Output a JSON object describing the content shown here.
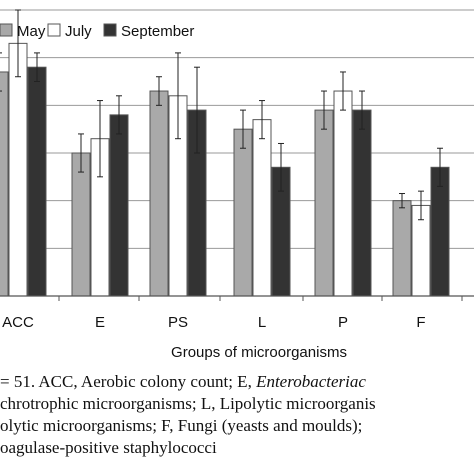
{
  "chart_data": {
    "type": "bar",
    "xlabel": "Groups of microorganisms",
    "ylabel": "",
    "ylim": [
      0,
      6
    ],
    "grid": "horizontal",
    "legend_position": "top-left",
    "categories": [
      "ACC",
      "E",
      "PS",
      "L",
      "P",
      "F"
    ],
    "series": [
      {
        "name": "May",
        "color": "#a9a9a9",
        "values": [
          4.7,
          3.0,
          4.3,
          3.5,
          3.9,
          2.0
        ],
        "errors": [
          0.4,
          0.4,
          0.3,
          0.4,
          0.4,
          0.15
        ]
      },
      {
        "name": "July",
        "color": "#ffffff",
        "values": [
          5.3,
          3.3,
          4.2,
          3.7,
          4.3,
          1.9
        ],
        "errors": [
          0.7,
          0.8,
          0.9,
          0.4,
          0.4,
          0.3
        ]
      },
      {
        "name": "September",
        "color": "#333333",
        "values": [
          4.8,
          3.8,
          3.9,
          2.7,
          3.9,
          2.7
        ],
        "errors": [
          0.3,
          0.4,
          0.9,
          0.5,
          0.4,
          0.4
        ]
      }
    ]
  },
  "caption": {
    "line1_a": "= 51. ACC,  Aerobic colony count; E, ",
    "line1_b": "Enterobacteriac",
    "line2": "chrotrophic microorganisms; L, Lipolytic microorganis",
    "line3": "olytic microorganisms; F, Fungi (yeasts and moulds);",
    "line4": "oagulase-positive staphylococci"
  }
}
